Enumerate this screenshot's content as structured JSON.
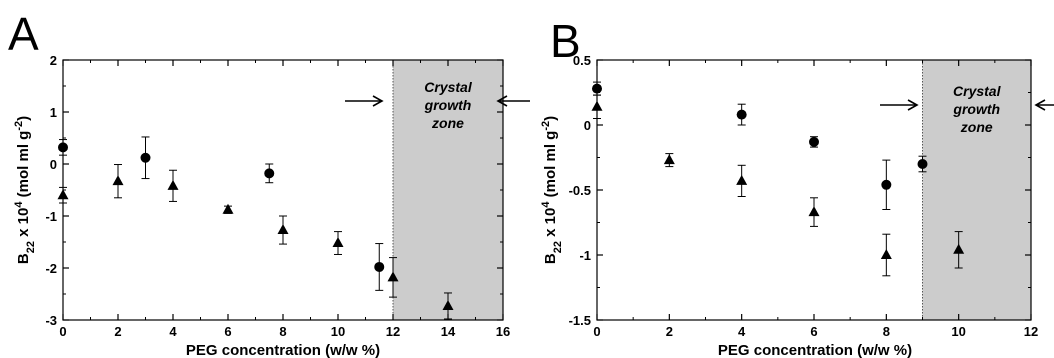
{
  "chart_data": [
    {
      "type": "scatter",
      "panel": "A",
      "xlabel": "PEG concentration (w/w %)",
      "ylabel_main": "B",
      "ylabel_sub": "22",
      "ylabel_mid": " x 10",
      "ylabel_sup": "4",
      "ylabel_units": " (mol ml g",
      "ylabel_units_sup": "-2",
      "ylabel_end": ")",
      "xlim": [
        0,
        16
      ],
      "ylim": [
        -3,
        2
      ],
      "xticks": [
        0,
        2,
        4,
        6,
        8,
        10,
        12,
        14,
        16
      ],
      "yticks": [
        -3,
        -2,
        -1,
        0,
        1,
        2
      ],
      "zone": {
        "x_start": 12,
        "x_end": 16,
        "label_lines": [
          "Crystal",
          "growth",
          "zone"
        ],
        "fill": "#cccccc"
      },
      "series": [
        {
          "marker": "circle",
          "points": [
            {
              "x": 0,
              "y": 0.32,
              "err": 0.15
            },
            {
              "x": 3,
              "y": 0.12,
              "err": 0.4
            },
            {
              "x": 7.5,
              "y": -0.18,
              "err": 0.18
            },
            {
              "x": 11.5,
              "y": -1.98,
              "err": 0.45
            }
          ]
        },
        {
          "marker": "triangle",
          "points": [
            {
              "x": 0,
              "y": -0.6,
              "err": 0.15
            },
            {
              "x": 2,
              "y": -0.33,
              "err": 0.32
            },
            {
              "x": 4,
              "y": -0.42,
              "err": 0.3
            },
            {
              "x": 6,
              "y": -0.88,
              "err": 0.07
            },
            {
              "x": 8,
              "y": -1.27,
              "err": 0.27
            },
            {
              "x": 10,
              "y": -1.52,
              "err": 0.22
            },
            {
              "x": 12,
              "y": -2.18,
              "err": 0.38
            },
            {
              "x": 14,
              "y": -2.73,
              "err": 0.25
            }
          ]
        }
      ]
    },
    {
      "type": "scatter",
      "panel": "B",
      "xlabel": "PEG concentration (w/w %)",
      "ylabel_main": "B",
      "ylabel_sub": "22",
      "ylabel_mid": " x 10",
      "ylabel_sup": "4",
      "ylabel_units": " (mol ml g",
      "ylabel_units_sup": "-2",
      "ylabel_end": ")",
      "xlim": [
        0,
        12
      ],
      "ylim": [
        -1.5,
        0.5
      ],
      "xticks": [
        0,
        2,
        4,
        6,
        8,
        10,
        12
      ],
      "yticks": [
        -1.5,
        -1,
        -0.5,
        0,
        0.5
      ],
      "ytick_labels": [
        "-1.5",
        "-1",
        "-0.5",
        "0",
        "0.5"
      ],
      "zone": {
        "x_start": 9,
        "x_end": 12,
        "label_lines": [
          "Crystal",
          "growth",
          "zone"
        ],
        "fill": "#cccccc"
      },
      "series": [
        {
          "marker": "circle",
          "points": [
            {
              "x": 0,
              "y": 0.28,
              "err": 0.05
            },
            {
              "x": 4,
              "y": 0.08,
              "err": 0.08
            },
            {
              "x": 6,
              "y": -0.13,
              "err": 0.04
            },
            {
              "x": 8,
              "y": -0.46,
              "err": 0.19
            },
            {
              "x": 9,
              "y": -0.3,
              "err": 0.06
            }
          ]
        },
        {
          "marker": "triangle",
          "points": [
            {
              "x": 0,
              "y": 0.14,
              "err": 0.09
            },
            {
              "x": 2,
              "y": -0.27,
              "err": 0.05
            },
            {
              "x": 4,
              "y": -0.43,
              "err": 0.12
            },
            {
              "x": 6,
              "y": -0.67,
              "err": 0.11
            },
            {
              "x": 8,
              "y": -1.0,
              "err": 0.16
            },
            {
              "x": 10,
              "y": -0.96,
              "err": 0.14
            }
          ]
        }
      ]
    }
  ]
}
